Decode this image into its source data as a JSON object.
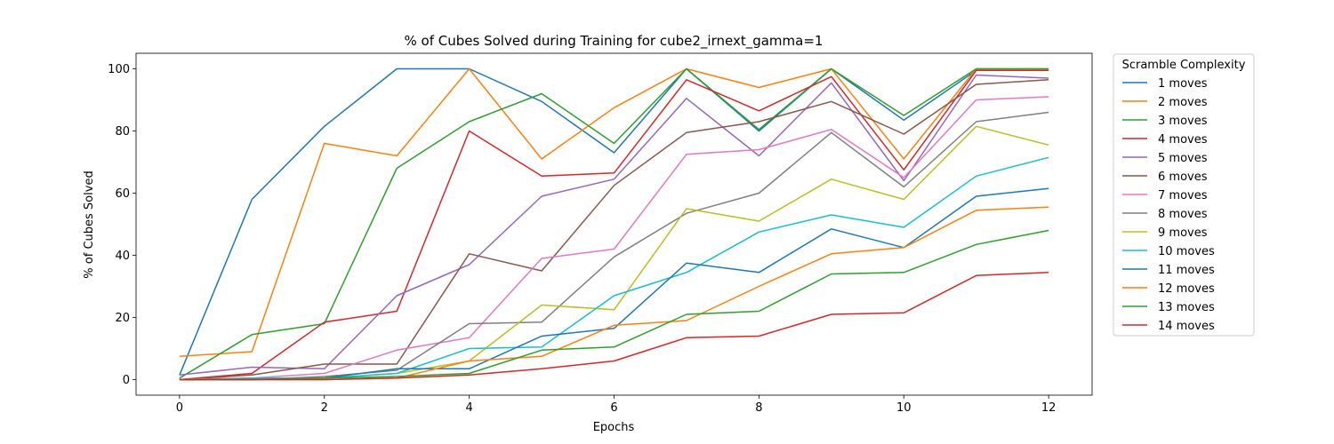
{
  "chart_data": {
    "type": "line",
    "title": "% of Cubes Solved during Training for cube2_irnext_gamma=1",
    "xlabel": "Epochs",
    "ylabel": "% of Cubes Solved",
    "xlim": [
      -0.6,
      12.6
    ],
    "ylim": [
      -5,
      105
    ],
    "xticks": [
      0,
      2,
      4,
      6,
      8,
      10,
      12
    ],
    "yticks": [
      0,
      20,
      40,
      60,
      80,
      100
    ],
    "grid": false,
    "legend": {
      "title": "Scramble Complexity",
      "placement": "outside-right"
    },
    "x": [
      0,
      1,
      2,
      3,
      4,
      5,
      6,
      7,
      8,
      9,
      10,
      11,
      12
    ],
    "series": [
      {
        "name": "1 moves",
        "color": "#1f77b4",
        "values": [
          1.5,
          58,
          81.5,
          100,
          100,
          89.5,
          73,
          100,
          80,
          100,
          83.5,
          99.5,
          99.5
        ]
      },
      {
        "name": "2 moves",
        "color": "#ff7f0e",
        "values": [
          7.5,
          9,
          76,
          72,
          100,
          71,
          87.5,
          100,
          94,
          100,
          71,
          100,
          100
        ]
      },
      {
        "name": "3 moves",
        "color": "#2ca02c",
        "values": [
          0.5,
          14.5,
          18,
          68,
          83,
          92,
          76,
          100,
          80.5,
          100,
          85,
          100,
          100
        ]
      },
      {
        "name": "4 moves",
        "color": "#d62728",
        "values": [
          0,
          2,
          18.5,
          22,
          80,
          65.5,
          66.5,
          96.5,
          86.5,
          97.5,
          67.5,
          99.5,
          99.5
        ]
      },
      {
        "name": "5 moves",
        "color": "#9467bd",
        "values": [
          1.5,
          4,
          3.5,
          27,
          37,
          59,
          64.5,
          90.5,
          72,
          95.5,
          64,
          98,
          97
        ]
      },
      {
        "name": "6 moves",
        "color": "#8c564b",
        "values": [
          0,
          1.5,
          5,
          5,
          40.5,
          35,
          62.5,
          79.5,
          83,
          89.5,
          79,
          95,
          96.5
        ]
      },
      {
        "name": "7 moves",
        "color": "#e377c2",
        "values": [
          0,
          0.5,
          2,
          9.5,
          13.5,
          39,
          42,
          72.5,
          74,
          80.5,
          65,
          90,
          91
        ]
      },
      {
        "name": "8 moves",
        "color": "#7f7f7f",
        "values": [
          0,
          0,
          1,
          3,
          18,
          18.5,
          39.5,
          53.5,
          60,
          79.5,
          62,
          83,
          86
        ]
      },
      {
        "name": "9 moves",
        "color": "#bcbd22",
        "values": [
          0,
          0.5,
          0.5,
          2,
          6,
          24,
          22.5,
          55,
          51,
          64.5,
          58,
          81.5,
          75.5
        ]
      },
      {
        "name": "10 moves",
        "color": "#17becf",
        "values": [
          0,
          0.5,
          0.5,
          2,
          10,
          10.5,
          27,
          34.5,
          47.5,
          53,
          49,
          65.5,
          71.5
        ]
      },
      {
        "name": "11 moves",
        "color": "#1f77b4",
        "values": [
          0,
          0,
          0.5,
          3.5,
          3.5,
          14,
          16.5,
          37.5,
          34.5,
          48.5,
          42.5,
          59,
          61.5
        ]
      },
      {
        "name": "12 moves",
        "color": "#ff7f0e",
        "values": [
          0,
          0,
          0,
          0.5,
          6,
          7.5,
          17.5,
          19,
          30,
          40.5,
          42.5,
          54.5,
          55.5
        ]
      },
      {
        "name": "13 moves",
        "color": "#2ca02c",
        "values": [
          0,
          0,
          0.5,
          1,
          2,
          9.5,
          10.5,
          21,
          22,
          34,
          34.5,
          43.5,
          48
        ]
      },
      {
        "name": "14 moves",
        "color": "#d62728",
        "values": [
          0,
          0,
          0,
          0.5,
          1.5,
          3.5,
          6,
          13.5,
          14,
          21,
          21.5,
          33.5,
          34.5
        ]
      }
    ]
  }
}
